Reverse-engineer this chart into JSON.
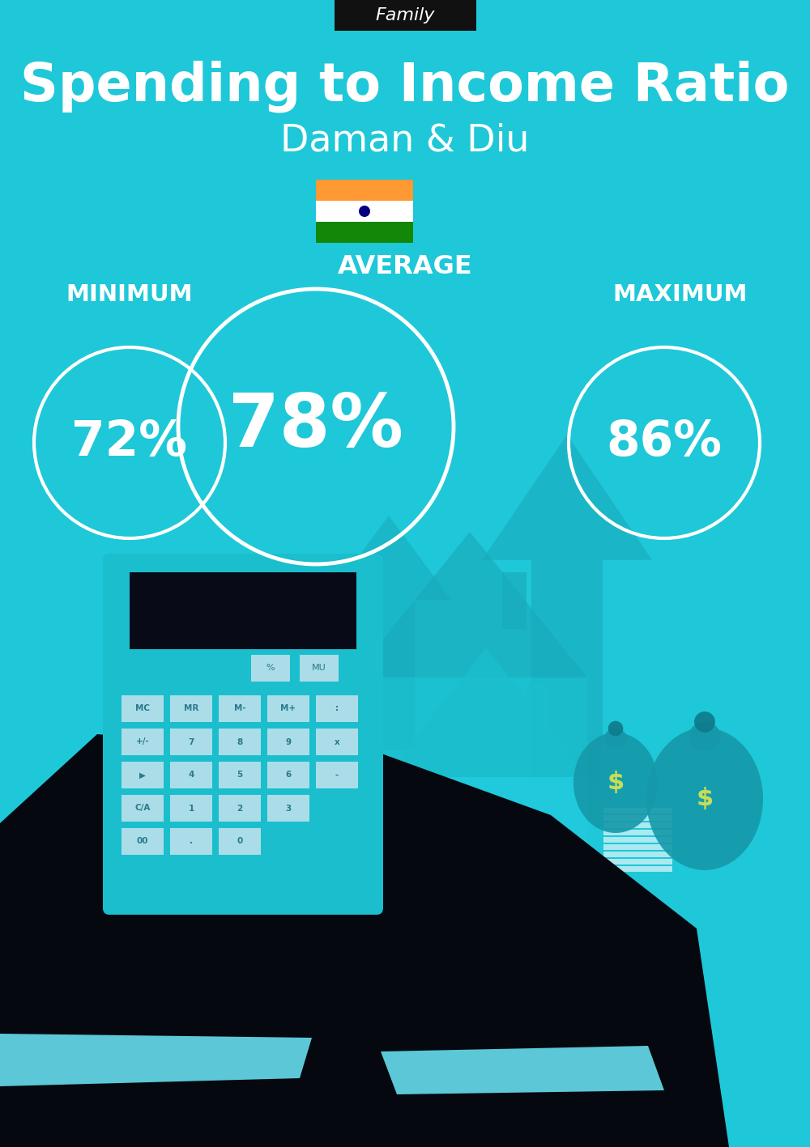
{
  "bg_color": "#1EC8D8",
  "title_tag": "Family",
  "title_tag_bg": "#111111",
  "title_tag_color": "#ffffff",
  "main_title": "Spending to Income Ratio",
  "subtitle": "Daman & Diu",
  "main_title_color": "#ffffff",
  "subtitle_color": "#ffffff",
  "avg_label": "AVERAGE",
  "min_label": "MINIMUM",
  "max_label": "MAXIMUM",
  "avg_value": "78%",
  "min_value": "72%",
  "max_value": "86%",
  "label_color": "#ffffff",
  "value_color": "#ffffff",
  "circle_edge_color": "#ffffff",
  "flag_orange": "#FF9933",
  "flag_white": "#FFFFFF",
  "flag_green": "#138808",
  "flag_navy": "#000080",
  "arrow_color": "#18AABC",
  "house_color": "#1ABECC",
  "house_body_color": "#22CCE0",
  "money_color": "#18AABC",
  "bag_color": "#1599AA",
  "dollar_color": "#C8DD55",
  "calc_body_color": "#1ABECC",
  "screen_color": "#080A18",
  "btn_color": "#AADDE8",
  "btn_text_color": "#2A7A8A",
  "hand_color": "#060810",
  "cuff_color": "#66DDED"
}
